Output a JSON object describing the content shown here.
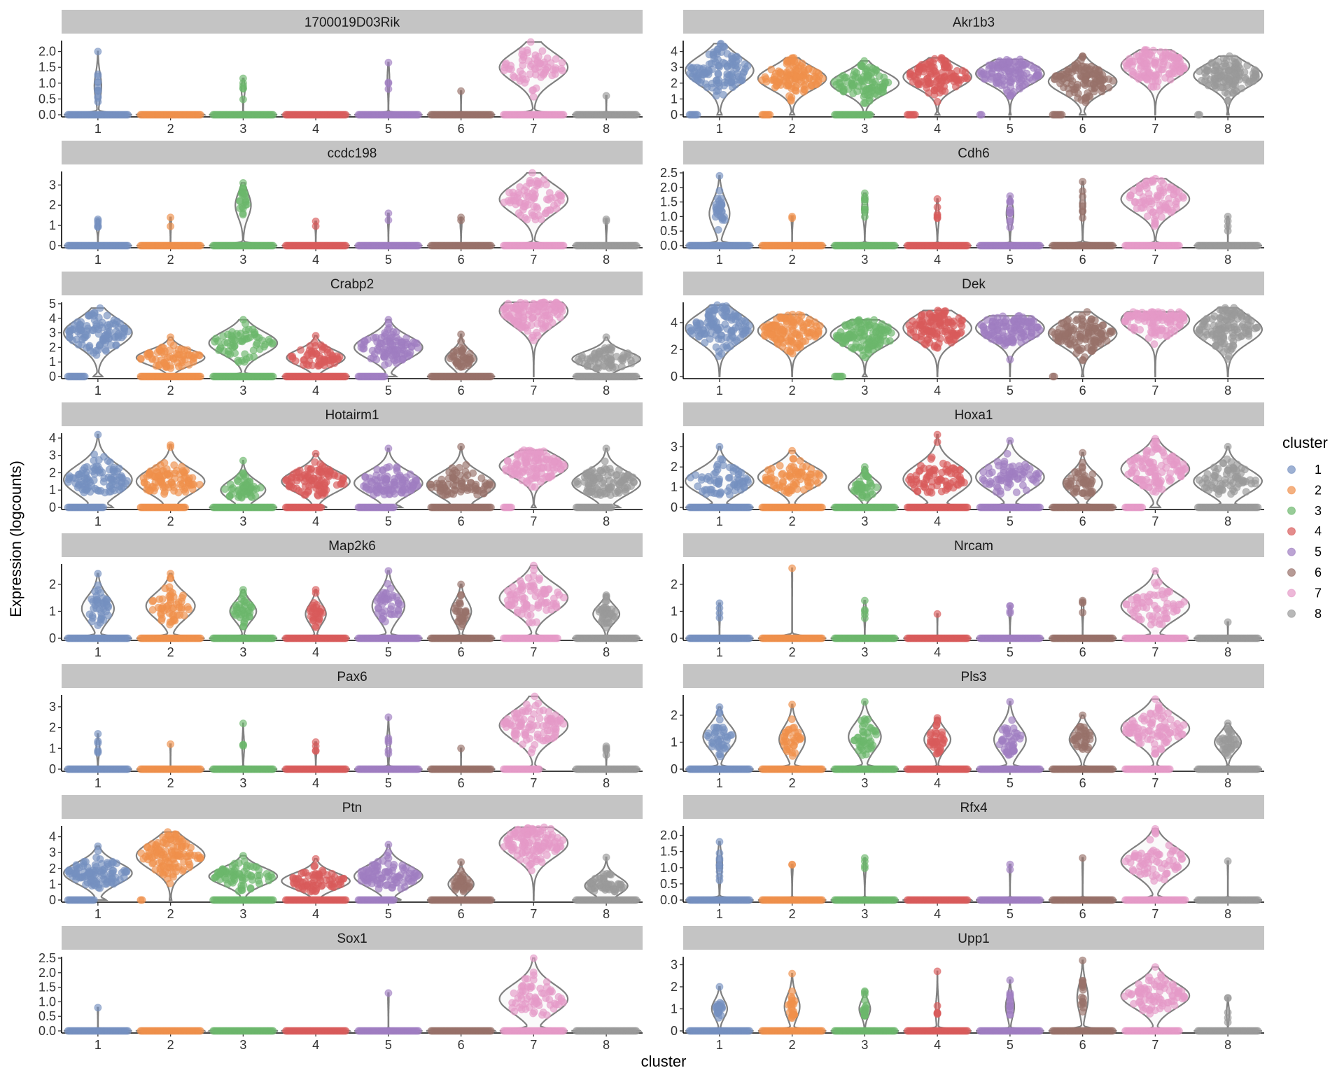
{
  "chart_data": {
    "type": "violin",
    "xlabel": "cluster",
    "ylabel": "Expression (logcounts)",
    "categories": [
      "1",
      "2",
      "3",
      "4",
      "5",
      "6",
      "7",
      "8"
    ],
    "legend": {
      "title": "cluster",
      "placement": "right",
      "items": [
        "1",
        "2",
        "3",
        "4",
        "5",
        "6",
        "7",
        "8"
      ]
    },
    "colors": {
      "1": "#7590c0",
      "2": "#f0904c",
      "3": "#6cb76c",
      "4": "#d95b5b",
      "5": "#a07ec2",
      "6": "#98716a",
      "7": "#e59ac8",
      "8": "#9a9a9a"
    },
    "panels": [
      {
        "gene": "1700019D03Rik",
        "ylim": [
          0,
          2.3
        ],
        "ticks": [
          "0.0",
          "0.5",
          "1.0",
          "1.5",
          "2.0"
        ],
        "tickvals": [
          0,
          0.5,
          1,
          1.5,
          2
        ],
        "max": [
          2.0,
          0.05,
          1.15,
          0.05,
          1.65,
          0.75,
          2.3,
          0.6
        ],
        "center": [
          0.9,
          0,
          0.8,
          0,
          1.1,
          0.7,
          1.5,
          0.6
        ],
        "zero": [
          0.9,
          1,
          0.95,
          1,
          0.97,
          0.99,
          0.45,
          0.99
        ]
      },
      {
        "gene": "Akr1b3",
        "ylim": [
          0,
          4.6
        ],
        "ticks": [
          "0",
          "1",
          "2",
          "3",
          "4"
        ],
        "tickvals": [
          0,
          1,
          2,
          3,
          4
        ],
        "max": [
          4.5,
          3.6,
          3.4,
          3.6,
          3.5,
          3.7,
          4.1,
          3.7
        ],
        "center": [
          2.8,
          2.3,
          2.0,
          2.4,
          2.6,
          2.1,
          3.1,
          2.5
        ],
        "zero": [
          0.05,
          0.05,
          0.2,
          0.05,
          0.02,
          0.06,
          0.0,
          0.02
        ]
      },
      {
        "gene": "ccdc198",
        "ylim": [
          0,
          3.6
        ],
        "ticks": [
          "0",
          "1",
          "2",
          "3"
        ],
        "tickvals": [
          0,
          1,
          2,
          3
        ],
        "max": [
          1.3,
          1.4,
          3.1,
          1.2,
          1.6,
          1.4,
          3.6,
          1.3
        ],
        "center": [
          1.0,
          1.1,
          2.0,
          1.0,
          1.3,
          1.1,
          2.3,
          1.0
        ],
        "zero": [
          0.95,
          0.98,
          0.8,
          0.98,
          0.98,
          0.98,
          0.35,
          0.98
        ]
      },
      {
        "gene": "Cdh6",
        "ylim": [
          0,
          2.5
        ],
        "ticks": [
          "0.0",
          "0.5",
          "1.0",
          "1.5",
          "2.0",
          "2.5"
        ],
        "tickvals": [
          0,
          0.5,
          1,
          1.5,
          2,
          2.5
        ],
        "max": [
          2.4,
          1.0,
          1.8,
          1.6,
          1.7,
          2.2,
          2.3,
          1.0
        ],
        "center": [
          1.1,
          0.9,
          1.3,
          1.0,
          1.1,
          1.4,
          1.6,
          0.8
        ],
        "zero": [
          0.75,
          0.98,
          0.92,
          0.95,
          0.9,
          0.93,
          0.3,
          0.97
        ]
      },
      {
        "gene": "Crabp2",
        "ylim": [
          0,
          5.0
        ],
        "ticks": [
          "0",
          "1",
          "2",
          "3",
          "4",
          "5"
        ],
        "tickvals": [
          0,
          1,
          2,
          3,
          4,
          5
        ],
        "max": [
          4.7,
          2.7,
          3.9,
          2.8,
          3.9,
          2.9,
          5.1,
          2.7
        ],
        "center": [
          3.0,
          1.3,
          2.3,
          1.3,
          2.0,
          1.2,
          4.5,
          1.2
        ],
        "zero": [
          0.1,
          0.45,
          0.45,
          0.5,
          0.15,
          0.65,
          0.0,
          0.45
        ]
      },
      {
        "gene": "Dek",
        "ylim": [
          0,
          5.4
        ],
        "ticks": [
          "0",
          "2",
          "4"
        ],
        "tickvals": [
          0,
          2,
          4
        ],
        "max": [
          5.3,
          4.6,
          4.2,
          4.9,
          4.5,
          4.8,
          4.8,
          5.1
        ],
        "center": [
          3.6,
          3.4,
          3.1,
          3.6,
          3.6,
          3.2,
          4.2,
          3.5
        ],
        "zero": [
          0.0,
          0.0,
          0.05,
          0.0,
          0.0,
          0.02,
          0.0,
          0.0
        ]
      },
      {
        "gene": "Hotairm1",
        "ylim": [
          0,
          4.2
        ],
        "ticks": [
          "0",
          "1",
          "2",
          "3",
          "4"
        ],
        "tickvals": [
          0,
          1,
          2,
          3,
          4
        ],
        "max": [
          4.2,
          3.6,
          2.7,
          3.1,
          3.4,
          3.5,
          3.3,
          3.4
        ],
        "center": [
          1.6,
          1.5,
          1.0,
          1.5,
          1.4,
          1.3,
          2.4,
          1.4
        ],
        "zero": [
          0.2,
          0.25,
          0.55,
          0.2,
          0.2,
          0.35,
          0.05,
          0.2
        ]
      },
      {
        "gene": "Hoxa1",
        "ylim": [
          0,
          3.6
        ],
        "ticks": [
          "0",
          "1",
          "2",
          "3"
        ],
        "tickvals": [
          0,
          1,
          2,
          3
        ],
        "max": [
          3.0,
          2.8,
          2.0,
          3.6,
          3.3,
          2.7,
          3.4,
          3.0
        ],
        "center": [
          1.3,
          1.5,
          1.0,
          1.4,
          1.5,
          1.2,
          1.9,
          1.3
        ],
        "zero": [
          0.45,
          0.35,
          0.65,
          0.35,
          0.4,
          0.6,
          0.1,
          0.4
        ]
      },
      {
        "gene": "Map2k6",
        "ylim": [
          0,
          2.7
        ],
        "ticks": [
          "0",
          "1",
          "2"
        ],
        "tickvals": [
          0,
          1,
          2
        ],
        "max": [
          2.4,
          2.4,
          1.8,
          1.8,
          2.5,
          2.0,
          2.7,
          1.6
        ],
        "center": [
          1.1,
          1.2,
          1.0,
          0.9,
          1.2,
          1.0,
          1.5,
          0.9
        ],
        "zero": [
          0.65,
          0.55,
          0.7,
          0.75,
          0.65,
          0.75,
          0.3,
          0.7
        ]
      },
      {
        "gene": "Nrcam",
        "ylim": [
          0,
          2.7
        ],
        "ticks": [
          "0",
          "1",
          "2"
        ],
        "tickvals": [
          0,
          1,
          2
        ],
        "max": [
          1.3,
          2.6,
          1.4,
          0.9,
          1.2,
          1.4,
          2.5,
          0.6
        ],
        "center": [
          1.0,
          2.6,
          1.0,
          0.9,
          1.0,
          1.1,
          1.2,
          0.6
        ],
        "zero": [
          0.97,
          0.995,
          0.96,
          0.99,
          0.97,
          0.97,
          0.45,
          0.99
        ]
      },
      {
        "gene": "Pax6",
        "ylim": [
          0,
          3.5
        ],
        "ticks": [
          "0",
          "1",
          "2",
          "3"
        ],
        "tickvals": [
          0,
          1,
          2,
          3
        ],
        "max": [
          1.7,
          1.2,
          2.2,
          1.3,
          2.5,
          1.0,
          3.5,
          1.1
        ],
        "center": [
          1.0,
          1.2,
          1.1,
          1.0,
          1.2,
          1.0,
          2.1,
          0.9
        ],
        "zero": [
          0.95,
          0.99,
          0.97,
          0.97,
          0.95,
          0.99,
          0.2,
          0.96
        ]
      },
      {
        "gene": "Pls3",
        "ylim": [
          0,
          2.7
        ],
        "ticks": [
          "0",
          "1",
          "2"
        ],
        "tickvals": [
          0,
          1,
          2
        ],
        "max": [
          2.3,
          2.4,
          2.5,
          1.9,
          2.5,
          2.0,
          2.6,
          1.7
        ],
        "center": [
          1.2,
          1.1,
          1.2,
          1.1,
          1.1,
          1.1,
          1.5,
          1.0
        ],
        "zero": [
          0.65,
          0.7,
          0.65,
          0.7,
          0.65,
          0.7,
          0.25,
          0.7
        ]
      },
      {
        "gene": "Ptn",
        "ylim": [
          0,
          4.6
        ],
        "ticks": [
          "0",
          "1",
          "2",
          "3",
          "4"
        ],
        "tickvals": [
          0,
          1,
          2,
          3,
          4
        ],
        "max": [
          3.4,
          4.3,
          2.8,
          2.6,
          3.5,
          2.4,
          4.6,
          2.7
        ],
        "center": [
          1.7,
          2.8,
          1.5,
          1.2,
          1.5,
          1.0,
          3.6,
          0.9
        ],
        "zero": [
          0.15,
          0.02,
          0.4,
          0.4,
          0.2,
          0.7,
          0.0,
          0.55
        ]
      },
      {
        "gene": "Rfx4",
        "ylim": [
          0,
          2.25
        ],
        "ticks": [
          "0.0",
          "0.5",
          "1.0",
          "1.5",
          "2.0"
        ],
        "tickvals": [
          0,
          0.5,
          1,
          1.5,
          2
        ],
        "max": [
          1.8,
          1.1,
          1.3,
          0.05,
          1.1,
          1.3,
          2.2,
          1.2
        ],
        "center": [
          1.1,
          1.0,
          1.0,
          0,
          1.0,
          1.1,
          1.2,
          1.2
        ],
        "zero": [
          0.92,
          0.98,
          0.97,
          1,
          0.98,
          0.99,
          0.4,
          0.99
        ]
      },
      {
        "gene": "Sox1",
        "ylim": [
          0,
          2.5
        ],
        "ticks": [
          "0.0",
          "0.5",
          "1.0",
          "1.5",
          "2.0",
          "2.5"
        ],
        "tickvals": [
          0,
          0.5,
          1,
          1.5,
          2,
          2.5
        ],
        "max": [
          0.8,
          0.05,
          0.05,
          0.05,
          1.3,
          0.05,
          2.5,
          0.05
        ],
        "center": [
          0.8,
          0,
          0,
          0,
          1.1,
          0,
          1.1,
          0
        ],
        "zero": [
          0.99,
          1,
          1,
          1,
          0.99,
          1,
          0.45,
          1
        ]
      },
      {
        "gene": "Upp1",
        "ylim": [
          0,
          3.3
        ],
        "ticks": [
          "0",
          "1",
          "2",
          "3"
        ],
        "tickvals": [
          0,
          1,
          2,
          3
        ],
        "max": [
          2.0,
          2.6,
          1.8,
          2.7,
          2.3,
          3.2,
          2.9,
          1.5
        ],
        "center": [
          1.0,
          1.1,
          1.0,
          0.9,
          1.1,
          1.5,
          1.6,
          0.8
        ],
        "zero": [
          0.8,
          0.8,
          0.85,
          0.95,
          0.88,
          0.85,
          0.3,
          0.96
        ]
      }
    ]
  }
}
